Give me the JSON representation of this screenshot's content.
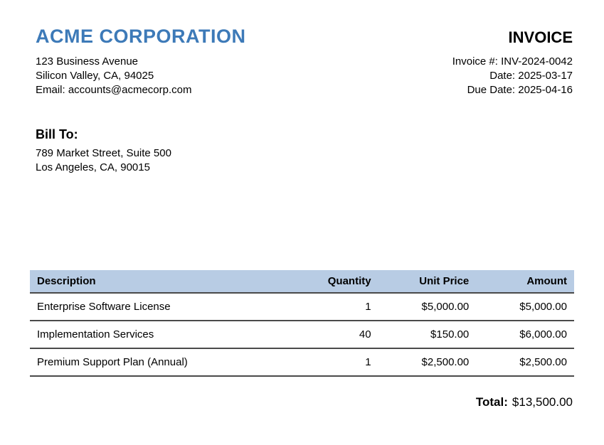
{
  "company": {
    "name": "ACME CORPORATION",
    "address_line1": "123 Business Avenue",
    "address_line2": "Silicon Valley, CA, 94025",
    "email_line": "Email: accounts@acmecorp.com"
  },
  "invoice": {
    "title": "INVOICE",
    "number_line": "Invoice #: INV-2024-0042",
    "date_line": "Date: 2025-03-17",
    "due_date_line": "Due Date: 2025-04-16"
  },
  "bill_to": {
    "label": "Bill To:",
    "address_line1": "789 Market Street, Suite 500",
    "address_line2": "Los Angeles, CA, 90015"
  },
  "table": {
    "headers": {
      "description": "Description",
      "quantity": "Quantity",
      "unit_price": "Unit Price",
      "amount": "Amount"
    },
    "rows": [
      {
        "description": "Enterprise Software License",
        "quantity": "1",
        "unit_price": "$5,000.00",
        "amount": "$5,000.00"
      },
      {
        "description": "Implementation Services",
        "quantity": "40",
        "unit_price": "$150.00",
        "amount": "$6,000.00"
      },
      {
        "description": "Premium Support Plan (Annual)",
        "quantity": "1",
        "unit_price": "$2,500.00",
        "amount": "$2,500.00"
      }
    ]
  },
  "total": {
    "label": "Total:",
    "value": "$13,500.00"
  },
  "colors": {
    "accent_blue": "#3d7ab8",
    "table_header_bg": "#b8cce4"
  }
}
